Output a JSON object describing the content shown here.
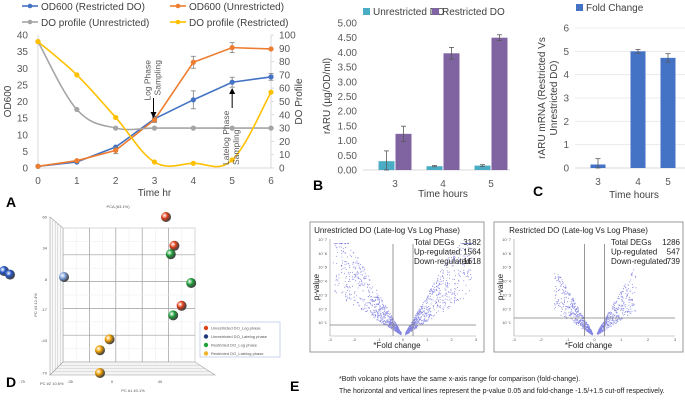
{
  "chart_data": [
    {
      "panel": "A",
      "type": "line",
      "xlabel": "Time hr",
      "ylabel": "OD600",
      "y2label": "DO Profile",
      "x": [
        0,
        1,
        2,
        3,
        4,
        5,
        6
      ],
      "xticks": [
        "0",
        "1",
        "2",
        "3",
        "4",
        "5",
        "6"
      ],
      "ylim": [
        0,
        40
      ],
      "yticks": [
        "0",
        "5",
        "10",
        "15",
        "20",
        "25",
        "30",
        "35",
        "40"
      ],
      "y2lim": [
        0,
        100
      ],
      "y2ticks": [
        "0",
        "10",
        "20",
        "30",
        "40",
        "50",
        "60",
        "70",
        "80",
        "90",
        "100"
      ],
      "legend_position": "top",
      "series": [
        {
          "name": "OD600 (Restricted DO)",
          "axis": "left",
          "color": "#4472C4",
          "values": [
            0.5,
            1.8,
            6.3,
            14.8,
            20.5,
            25.8,
            27.4
          ],
          "errors": [
            0,
            0,
            0,
            0.8,
            2.7,
            1.5,
            1.0
          ],
          "smooth": false
        },
        {
          "name": "OD600 (Unrestricted)",
          "axis": "left",
          "color": "#ED7D31",
          "values": [
            0.5,
            2.2,
            5.3,
            14.5,
            31.8,
            36.2,
            35.8
          ],
          "errors": [
            0,
            0,
            1.0,
            0.8,
            1.8,
            1.5,
            0
          ],
          "smooth": false
        },
        {
          "name": "DO profile (Unrestricted)",
          "axis": "right",
          "color": "#A5A5A5",
          "values": [
            95,
            44,
            30,
            30,
            30,
            30,
            30
          ],
          "errors": [
            0,
            0,
            0,
            0,
            0,
            0,
            0
          ],
          "smooth": true
        },
        {
          "name": "DO profile (Restricted)",
          "axis": "right",
          "color": "#FFC000",
          "values": [
            95,
            70,
            38,
            4.5,
            3.5,
            6,
            57
          ],
          "errors": [
            0,
            0,
            0,
            0,
            0,
            0,
            0
          ],
          "smooth": true
        }
      ],
      "annotations": [
        {
          "text_lines": [
            "Log Phase",
            "Sampling"
          ],
          "x": 3,
          "direction": "down"
        },
        {
          "text_lines": [
            "Latelog Phase",
            "Sampling"
          ],
          "x": 5,
          "direction": "up"
        }
      ]
    },
    {
      "panel": "B",
      "type": "bar",
      "xlabel": "Time hours",
      "ylabel": "rARU (µg/OD/ml)",
      "categories": [
        "3",
        "4",
        "5"
      ],
      "ylim": [
        0,
        5
      ],
      "yticks": [
        "0.00",
        "0.50",
        "1.00",
        "1.50",
        "2.00",
        "2.50",
        "3.00",
        "3.50",
        "4.00",
        "4.50",
        "5.00"
      ],
      "legend_position": "top",
      "series": [
        {
          "name": "Unrestricted DO",
          "color": "#4BACC6",
          "values": [
            0.3,
            0.13,
            0.15
          ],
          "errors": [
            0.35,
            0.02,
            0.03
          ]
        },
        {
          "name": "Restricted DO",
          "color": "#8064A2",
          "values": [
            1.23,
            3.97,
            4.5
          ],
          "errors": [
            0.26,
            0.2,
            0.1
          ]
        }
      ]
    },
    {
      "panel": "C",
      "type": "bar",
      "xlabel": "Time hours",
      "ylabel_lines": [
        "rARU mRNA (Restricted Vs",
        "Unrestricted DO)"
      ],
      "categories": [
        "3",
        "4",
        "5"
      ],
      "ylim": [
        0,
        6
      ],
      "yticks": [
        "0",
        "1",
        "2",
        "3",
        "4",
        "5",
        "6"
      ],
      "grid": true,
      "legend_position": "top",
      "series": [
        {
          "name": "Fold Change",
          "color": "#4472C4",
          "values": [
            0.15,
            5.0,
            4.72
          ],
          "errors": [
            0.25,
            0.08,
            0.18
          ]
        }
      ]
    },
    {
      "panel": "D",
      "type": "scatter",
      "title": "PCA (63.1%)",
      "xlabel": "PC #1 40.1%",
      "ylabel": "PC #3 12.4%",
      "zlabel": "PC #2 10.6%",
      "xticks": [
        "-75",
        "-35",
        "0",
        "40"
      ],
      "yticks": [
        "60",
        "34",
        "8",
        "-17",
        "-43",
        "-70"
      ],
      "legend_position": "right",
      "legend": [
        {
          "name": "Unrestricted DO_Log phase",
          "color": "#E0401A"
        },
        {
          "name": "Unrestricted DO_Latelog phase",
          "color": "#1F3A7A"
        },
        {
          "name": "Restricted DO_Log phase",
          "color": "#1FA23A"
        },
        {
          "name": "Restricted DO_Latelog phase",
          "color": "#F0B429"
        }
      ],
      "points": [
        {
          "group": "Unrestricted DO_Latelog phase",
          "color": "#2456C8",
          "x": -90,
          "y": 15
        },
        {
          "group": "Unrestricted DO_Latelog phase",
          "color": "#2456C8",
          "x": -85,
          "y": 12
        },
        {
          "group": "Unrestricted DO_Latelog phase",
          "color": "#7FA2E0",
          "x": -40,
          "y": 10
        },
        {
          "group": "Unrestricted DO_Log phase",
          "color": "#E0401A",
          "x": 45,
          "y": 60
        },
        {
          "group": "Unrestricted DO_Log phase",
          "color": "#E0401A",
          "x": 52,
          "y": 36
        },
        {
          "group": "Unrestricted DO_Log phase",
          "color": "#E0401A",
          "x": 58,
          "y": -14
        },
        {
          "group": "Restricted DO_Log phase",
          "color": "#1FA23A",
          "x": 49,
          "y": 29
        },
        {
          "group": "Restricted DO_Log phase",
          "color": "#1FA23A",
          "x": 66,
          "y": 5
        },
        {
          "group": "Restricted DO_Log phase",
          "color": "#1FA23A",
          "x": 51,
          "y": -22
        },
        {
          "group": "Restricted DO_Latelog phase",
          "color": "#F0A000",
          "x": -2,
          "y": -42
        },
        {
          "group": "Restricted DO_Latelog phase",
          "color": "#F0A000",
          "x": -10,
          "y": -51
        },
        {
          "group": "Restricted DO_Latelog phase",
          "color": "#F0A000",
          "x": -10,
          "y": -70
        }
      ]
    },
    {
      "panel": "E",
      "type": "scatter",
      "subtype": "volcano",
      "plots": [
        {
          "title": "Unrestricted DO (Late-log Vs Log Phase)",
          "xlabel": "*Fold change",
          "ylabel": "p-value",
          "stats": [
            {
              "label": "Total DEGs",
              "value": "3182"
            },
            {
              "label": "Up-regulated",
              "value": "1564"
            },
            {
              "label": "Down-regulated",
              "value": "1618"
            }
          ],
          "spread": 1.0
        },
        {
          "title": "Restricted DO (Late-log Vs Log Phase)",
          "xlabel": "*Fold change",
          "ylabel": "p-value",
          "stats": [
            {
              "label": "Total DEGs",
              "value": "1286"
            },
            {
              "label": "Up-regulated",
              "value": "547"
            },
            {
              "label": "Down-regulated",
              "value": "739"
            }
          ],
          "spread": 0.55
        }
      ],
      "cutoffs": {
        "p_value": 0.05,
        "fold_change": [
          -1.5,
          1.5
        ]
      },
      "footnote_lines": [
        "*Both volcano plots have the same x-axis range for comparison (fold-change).",
        "The horizontal and vertical lines represent the p-value 0.05 and fold-change -1.5/+1.5 cut-off respectively."
      ]
    }
  ],
  "panel_labels": [
    "A",
    "B",
    "C",
    "D",
    "E"
  ]
}
